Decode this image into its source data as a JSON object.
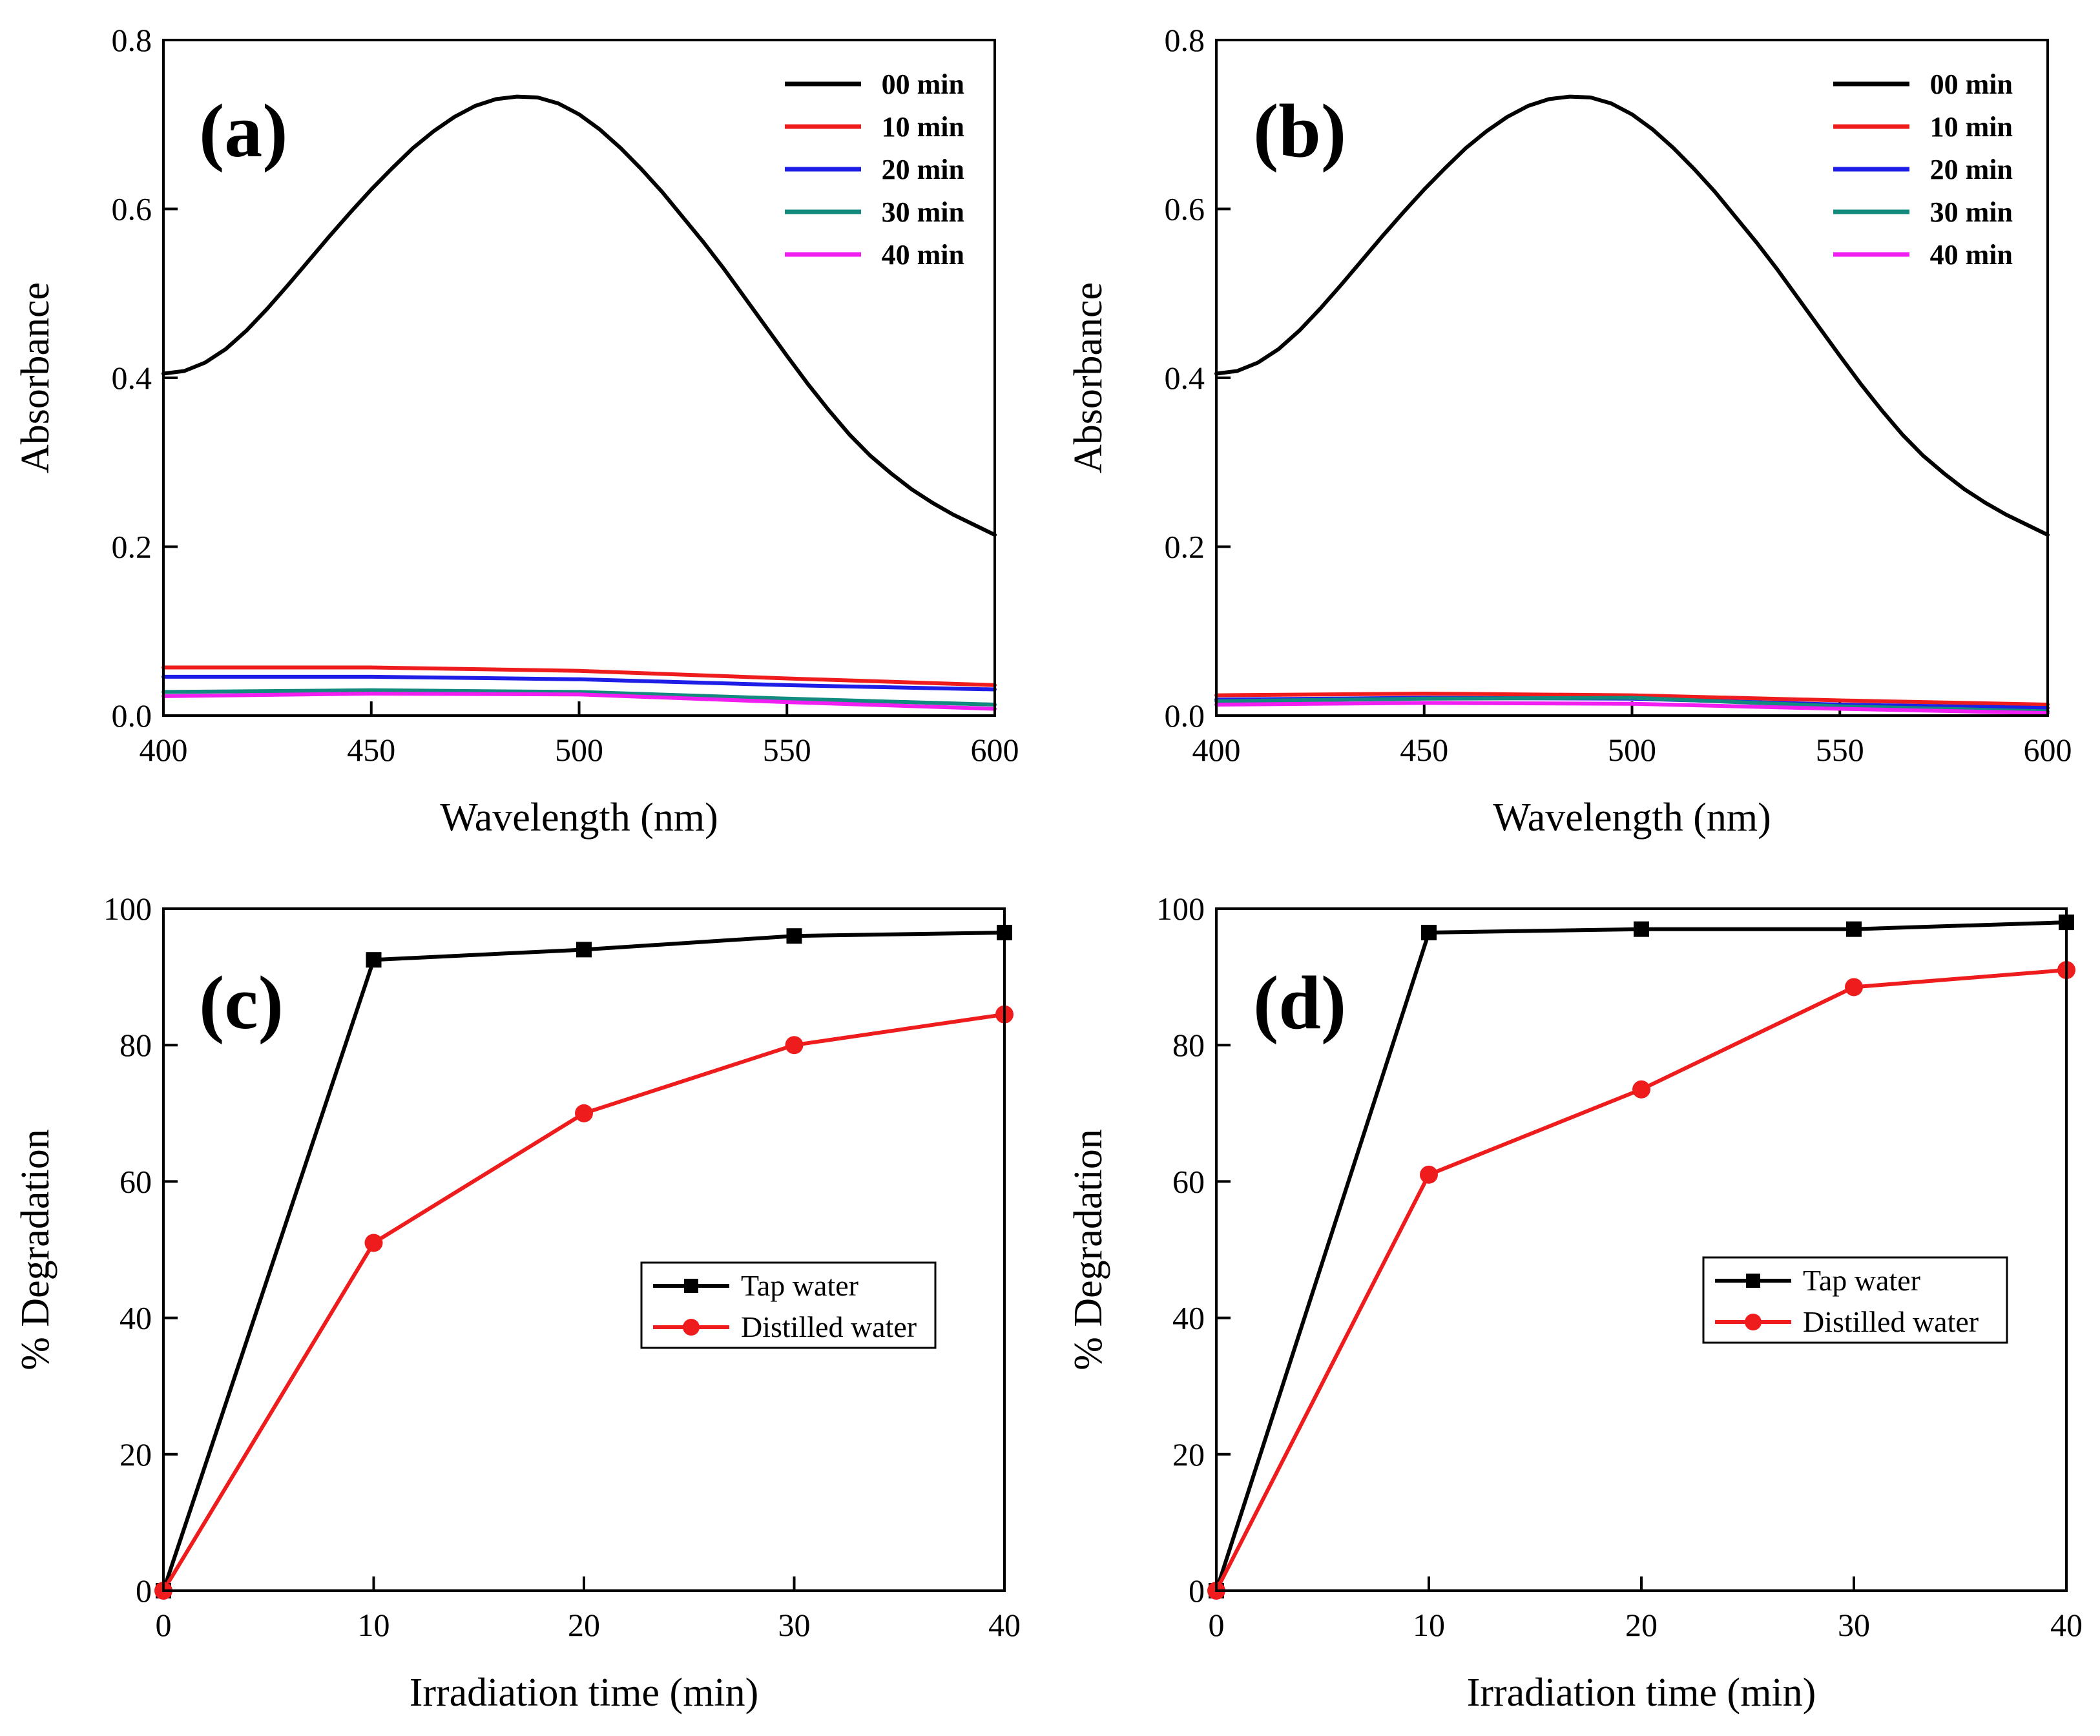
{
  "chart_data": [
    {
      "panel": "a",
      "type": "line",
      "label": "(a)",
      "xlabel": "Wavelength (nm)",
      "ylabel": "Absorbance",
      "xlim": [
        400,
        600
      ],
      "ylim": [
        0,
        0.8
      ],
      "xticks": [
        400,
        450,
        500,
        550,
        600
      ],
      "xtick_labels": [
        "400",
        "450",
        "500",
        "550",
        "600"
      ],
      "yticks": [
        0,
        0.2,
        0.4,
        0.6,
        0.8
      ],
      "ytick_labels": [
        "0.0",
        "0.2",
        "0.4",
        "0.6",
        "0.8"
      ],
      "legend": "top-right",
      "series": [
        {
          "name": "00 min",
          "color": "#000000",
          "x": [
            400,
            405,
            410,
            415,
            420,
            425,
            430,
            435,
            440,
            445,
            450,
            455,
            460,
            465,
            470,
            475,
            480,
            485,
            490,
            495,
            500,
            505,
            510,
            515,
            520,
            525,
            530,
            535,
            540,
            545,
            550,
            555,
            560,
            565,
            570,
            575,
            580,
            585,
            590,
            595,
            600
          ],
          "y": [
            0.405,
            0.408,
            0.418,
            0.434,
            0.456,
            0.482,
            0.51,
            0.539,
            0.568,
            0.596,
            0.623,
            0.648,
            0.672,
            0.692,
            0.709,
            0.722,
            0.73,
            0.733,
            0.732,
            0.725,
            0.712,
            0.694,
            0.672,
            0.647,
            0.62,
            0.59,
            0.56,
            0.528,
            0.494,
            0.46,
            0.426,
            0.393,
            0.362,
            0.333,
            0.308,
            0.287,
            0.268,
            0.252,
            0.238,
            0.226,
            0.214
          ]
        },
        {
          "name": "10 min",
          "color": "#ee1c1c",
          "x": [
            400,
            450,
            500,
            550,
            600
          ],
          "y": [
            0.057,
            0.057,
            0.053,
            0.044,
            0.036
          ]
        },
        {
          "name": "20 min",
          "color": "#1e1ee6",
          "x": [
            400,
            450,
            500,
            550,
            600
          ],
          "y": [
            0.046,
            0.046,
            0.043,
            0.036,
            0.031
          ]
        },
        {
          "name": "30 min",
          "color": "#138a7e",
          "x": [
            400,
            450,
            500,
            550,
            600
          ],
          "y": [
            0.028,
            0.03,
            0.028,
            0.02,
            0.013
          ]
        },
        {
          "name": "40 min",
          "color": "#f01ef0",
          "x": [
            400,
            450,
            500,
            550,
            600
          ],
          "y": [
            0.023,
            0.026,
            0.025,
            0.016,
            0.008
          ]
        }
      ]
    },
    {
      "panel": "b",
      "type": "line",
      "label": "(b)",
      "xlabel": "Wavelength (nm)",
      "ylabel": "Absorbance",
      "xlim": [
        400,
        600
      ],
      "ylim": [
        0,
        0.8
      ],
      "xticks": [
        400,
        450,
        500,
        550,
        600
      ],
      "xtick_labels": [
        "400",
        "450",
        "500",
        "550",
        "600"
      ],
      "yticks": [
        0,
        0.2,
        0.4,
        0.6,
        0.8
      ],
      "ytick_labels": [
        "0.0",
        "0.2",
        "0.4",
        "0.6",
        "0.8"
      ],
      "legend": "top-right",
      "series": [
        {
          "name": "00 min",
          "color": "#000000",
          "x": [
            400,
            405,
            410,
            415,
            420,
            425,
            430,
            435,
            440,
            445,
            450,
            455,
            460,
            465,
            470,
            475,
            480,
            485,
            490,
            495,
            500,
            505,
            510,
            515,
            520,
            525,
            530,
            535,
            540,
            545,
            550,
            555,
            560,
            565,
            570,
            575,
            580,
            585,
            590,
            595,
            600
          ],
          "y": [
            0.405,
            0.408,
            0.418,
            0.434,
            0.456,
            0.482,
            0.51,
            0.539,
            0.568,
            0.596,
            0.623,
            0.648,
            0.672,
            0.692,
            0.709,
            0.722,
            0.73,
            0.733,
            0.732,
            0.725,
            0.712,
            0.694,
            0.672,
            0.647,
            0.62,
            0.59,
            0.56,
            0.528,
            0.494,
            0.46,
            0.426,
            0.393,
            0.362,
            0.333,
            0.308,
            0.287,
            0.268,
            0.252,
            0.238,
            0.226,
            0.214
          ]
        },
        {
          "name": "10 min",
          "color": "#ee1c1c",
          "x": [
            400,
            450,
            500,
            550,
            600
          ],
          "y": [
            0.024,
            0.026,
            0.024,
            0.018,
            0.013
          ]
        },
        {
          "name": "20 min",
          "color": "#1e1ee6",
          "x": [
            400,
            450,
            500,
            550,
            600
          ],
          "y": [
            0.019,
            0.021,
            0.02,
            0.013,
            0.009
          ]
        },
        {
          "name": "30 min",
          "color": "#138a7e",
          "x": [
            400,
            450,
            500,
            550,
            600
          ],
          "y": [
            0.017,
            0.02,
            0.021,
            0.011,
            0.005
          ]
        },
        {
          "name": "40 min",
          "color": "#f01ef0",
          "x": [
            400,
            450,
            500,
            550,
            600
          ],
          "y": [
            0.013,
            0.015,
            0.014,
            0.008,
            0.003
          ]
        }
      ]
    },
    {
      "panel": "c",
      "type": "line",
      "label": "(c)",
      "xlabel": "Irradiation time (min)",
      "ylabel": "% Degradation",
      "xlim": [
        0,
        40
      ],
      "ylim": [
        0,
        100
      ],
      "xticks": [
        0,
        10,
        20,
        30,
        40
      ],
      "xtick_labels": [
        "0",
        "10",
        "20",
        "30",
        "40"
      ],
      "yticks": [
        0,
        20,
        40,
        60,
        80,
        100
      ],
      "ytick_labels": [
        "0",
        "20",
        "40",
        "60",
        "80",
        "100"
      ],
      "legend": "center-right",
      "series": [
        {
          "name": "Tap water",
          "color": "#000000",
          "marker": "square",
          "x": [
            0,
            10,
            20,
            30,
            40
          ],
          "y": [
            0,
            92.5,
            94,
            96,
            96.5
          ]
        },
        {
          "name": "Distilled water",
          "color": "#ee1c1c",
          "marker": "circle",
          "x": [
            0,
            10,
            20,
            30,
            40
          ],
          "y": [
            0,
            51,
            70,
            80,
            84.5
          ]
        }
      ]
    },
    {
      "panel": "d",
      "type": "line",
      "label": "(d)",
      "xlabel": "Irradiation time (min)",
      "ylabel": "% Degradation",
      "xlim": [
        0,
        40
      ],
      "ylim": [
        0,
        100
      ],
      "xticks": [
        0,
        10,
        20,
        30,
        40
      ],
      "xtick_labels": [
        "0",
        "10",
        "20",
        "30",
        "40"
      ],
      "yticks": [
        0,
        20,
        40,
        60,
        80,
        100
      ],
      "ytick_labels": [
        "0",
        "20",
        "40",
        "60",
        "80",
        "100"
      ],
      "legend": "center-right",
      "series": [
        {
          "name": "Tap water",
          "color": "#000000",
          "marker": "square",
          "x": [
            0,
            10,
            20,
            30,
            40
          ],
          "y": [
            0,
            96.5,
            97,
            97,
            98
          ]
        },
        {
          "name": "Distilled water",
          "color": "#ee1c1c",
          "marker": "circle",
          "x": [
            0,
            10,
            20,
            30,
            40
          ],
          "y": [
            0,
            61,
            73.5,
            88.5,
            91
          ]
        }
      ]
    }
  ]
}
